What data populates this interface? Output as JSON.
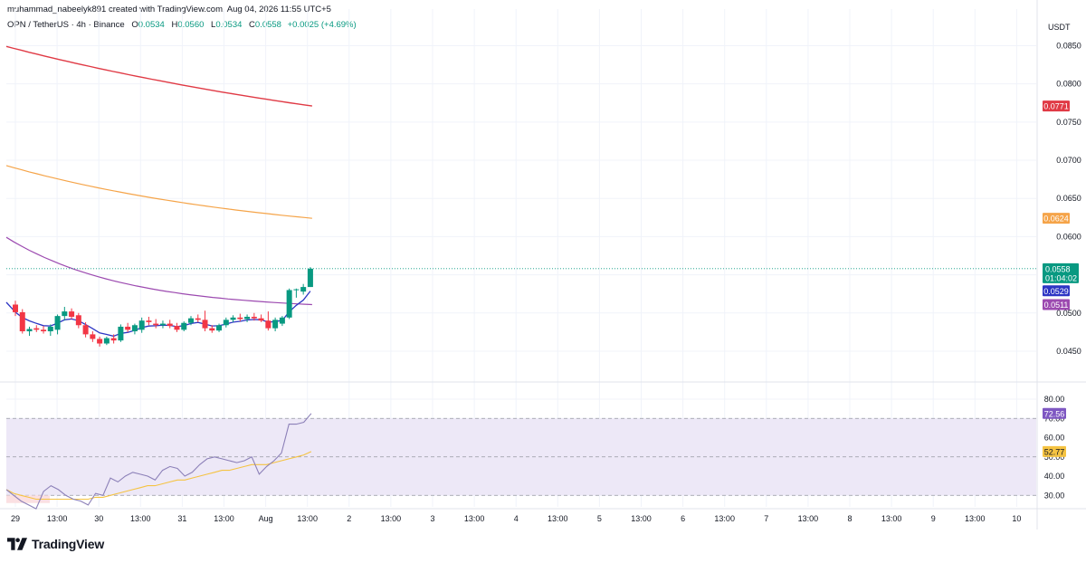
{
  "header": {
    "credit": "muhammad_nabeelyk891 created with TradingView.com, Aug 04, 2026 11:55 UTC+5",
    "symbol": "OPN / TetherUS · 4h · Binance",
    "open_label": "O",
    "open": "0.0534",
    "high_label": "H",
    "high": "0.0560",
    "low_label": "L",
    "low": "0.0534",
    "close_label": "C",
    "close": "0.0558",
    "change": "+0.0025 (+4.69%)"
  },
  "currency_label": "USDT",
  "brand": {
    "name": "TradingView",
    "logo_icon": "tradingview-logo-icon"
  },
  "colors": {
    "up": "#089981",
    "down": "#f23645",
    "ma_red": "#e03a45",
    "ma_orange": "#f5a449",
    "ma_purple": "#9c4ab0",
    "ma_blue": "#2d35c4",
    "rsi": "#8c80b8",
    "rsi_ma": "#f5c342",
    "rsi_band": "#ede8f7",
    "grid": "#f0f3fa"
  },
  "chart_data": [
    {
      "type": "candlestick",
      "title": "OPN / TetherUS · 4h · Binance",
      "ylabel": "USDT",
      "ylim": [
        0.0412,
        0.0898
      ],
      "y_ticks": [
        "0.0850",
        "0.0800",
        "0.0750",
        "0.0700",
        "0.0650",
        "0.0600",
        "0.0500",
        "0.0450"
      ],
      "x_ticks": [
        "29",
        "13:00",
        "30",
        "13:00",
        "31",
        "13:00",
        "Aug",
        "13:00",
        "2",
        "13:00",
        "3",
        "13:00",
        "4",
        "13:00",
        "5",
        "13:00",
        "6",
        "13:00",
        "7",
        "13:00",
        "8",
        "13:00",
        "9",
        "13:00",
        "10"
      ],
      "candles": [
        {
          "o": 0.0511,
          "h": 0.0516,
          "l": 0.0496,
          "c": 0.0501
        },
        {
          "o": 0.0501,
          "h": 0.0505,
          "l": 0.0473,
          "c": 0.0476
        },
        {
          "o": 0.0476,
          "h": 0.0482,
          "l": 0.047,
          "c": 0.0479
        },
        {
          "o": 0.048,
          "h": 0.0484,
          "l": 0.0475,
          "c": 0.0478
        },
        {
          "o": 0.0478,
          "h": 0.0483,
          "l": 0.0473,
          "c": 0.0476
        },
        {
          "o": 0.0476,
          "h": 0.0485,
          "l": 0.047,
          "c": 0.0482
        },
        {
          "o": 0.0478,
          "h": 0.0498,
          "l": 0.0472,
          "c": 0.0496
        },
        {
          "o": 0.0496,
          "h": 0.0508,
          "l": 0.049,
          "c": 0.0502
        },
        {
          "o": 0.0502,
          "h": 0.0506,
          "l": 0.0492,
          "c": 0.0495
        },
        {
          "o": 0.0497,
          "h": 0.05,
          "l": 0.048,
          "c": 0.0484
        },
        {
          "o": 0.0484,
          "h": 0.0488,
          "l": 0.0468,
          "c": 0.0472
        },
        {
          "o": 0.0472,
          "h": 0.0476,
          "l": 0.0462,
          "c": 0.0466
        },
        {
          "o": 0.0466,
          "h": 0.0469,
          "l": 0.0456,
          "c": 0.046
        },
        {
          "o": 0.046,
          "h": 0.0469,
          "l": 0.0458,
          "c": 0.0467
        },
        {
          "o": 0.0467,
          "h": 0.0472,
          "l": 0.046,
          "c": 0.0464
        },
        {
          "o": 0.0464,
          "h": 0.0485,
          "l": 0.0462,
          "c": 0.0482
        },
        {
          "o": 0.0482,
          "h": 0.0487,
          "l": 0.0475,
          "c": 0.0478
        },
        {
          "o": 0.0476,
          "h": 0.0486,
          "l": 0.0472,
          "c": 0.0484
        },
        {
          "o": 0.0478,
          "h": 0.0494,
          "l": 0.0474,
          "c": 0.049
        },
        {
          "o": 0.049,
          "h": 0.0495,
          "l": 0.0484,
          "c": 0.0488
        },
        {
          "o": 0.0486,
          "h": 0.0492,
          "l": 0.048,
          "c": 0.0484
        },
        {
          "o": 0.0484,
          "h": 0.049,
          "l": 0.048,
          "c": 0.0486
        },
        {
          "o": 0.0486,
          "h": 0.0491,
          "l": 0.048,
          "c": 0.0483
        },
        {
          "o": 0.0483,
          "h": 0.0487,
          "l": 0.0475,
          "c": 0.0478
        },
        {
          "o": 0.0478,
          "h": 0.0489,
          "l": 0.0476,
          "c": 0.0487
        },
        {
          "o": 0.0487,
          "h": 0.0496,
          "l": 0.0484,
          "c": 0.0493
        },
        {
          "o": 0.0493,
          "h": 0.0498,
          "l": 0.0488,
          "c": 0.0491
        },
        {
          "o": 0.0491,
          "h": 0.0503,
          "l": 0.0476,
          "c": 0.048
        },
        {
          "o": 0.048,
          "h": 0.0484,
          "l": 0.0474,
          "c": 0.0477
        },
        {
          "o": 0.0477,
          "h": 0.0486,
          "l": 0.0475,
          "c": 0.0484
        },
        {
          "o": 0.0484,
          "h": 0.0494,
          "l": 0.0481,
          "c": 0.0491
        },
        {
          "o": 0.0491,
          "h": 0.0497,
          "l": 0.0488,
          "c": 0.0494
        },
        {
          "o": 0.0494,
          "h": 0.0499,
          "l": 0.0489,
          "c": 0.0492
        },
        {
          "o": 0.0492,
          "h": 0.0498,
          "l": 0.0488,
          "c": 0.0495
        },
        {
          "o": 0.0495,
          "h": 0.05,
          "l": 0.049,
          "c": 0.0493
        },
        {
          "o": 0.0493,
          "h": 0.0498,
          "l": 0.0488,
          "c": 0.049
        },
        {
          "o": 0.049,
          "h": 0.0502,
          "l": 0.0477,
          "c": 0.048
        },
        {
          "o": 0.048,
          "h": 0.0494,
          "l": 0.0476,
          "c": 0.0491
        },
        {
          "o": 0.0486,
          "h": 0.0496,
          "l": 0.0483,
          "c": 0.0494
        },
        {
          "o": 0.0494,
          "h": 0.0532,
          "l": 0.0492,
          "c": 0.053
        },
        {
          "o": 0.053,
          "h": 0.0532,
          "l": 0.052,
          "c": 0.0531
        },
        {
          "o": 0.0528,
          "h": 0.0538,
          "l": 0.0524,
          "c": 0.0534
        },
        {
          "o": 0.0534,
          "h": 0.056,
          "l": 0.0534,
          "c": 0.0558
        }
      ],
      "moving_averages": [
        {
          "color": "#e03a45",
          "last": "0.0771",
          "start": 0.0849,
          "end": 0.0771
        },
        {
          "color": "#f5a449",
          "last": "0.0624",
          "start": 0.0693,
          "end": 0.0624
        },
        {
          "color": "#9c4ab0",
          "last": "0.0511",
          "start": 0.0599,
          "end": 0.0511
        },
        {
          "color": "#2d35c4",
          "last": "0.0529"
        }
      ],
      "last_price": {
        "value": "0.0558",
        "countdown": "01:04:02"
      }
    },
    {
      "type": "line",
      "title": "",
      "ylim": [
        24,
        88
      ],
      "y_ticks": [
        "80.00",
        "70.00",
        "60.00",
        "50.00",
        "40.00",
        "30.00"
      ],
      "band": [
        30,
        70
      ],
      "rsi": [
        33,
        30,
        27,
        25,
        23,
        32,
        35,
        33,
        30,
        28,
        27,
        25,
        31,
        30,
        39,
        37,
        40,
        42,
        41,
        40,
        38,
        43,
        45,
        44,
        40,
        42,
        46,
        49,
        50,
        49,
        48,
        47,
        48,
        50,
        41,
        45,
        48,
        52,
        67,
        67,
        68,
        72.56
      ],
      "rsi_ma": [
        33,
        31,
        30,
        29,
        28,
        28,
        28,
        28,
        28,
        28,
        28,
        28,
        29,
        29,
        30,
        31,
        32,
        33,
        34,
        35,
        35,
        36,
        37,
        38,
        38,
        39,
        40,
        41,
        42,
        43,
        43,
        44,
        45,
        46,
        46,
        46,
        47,
        48,
        49,
        50,
        51,
        52.77
      ],
      "rsi_last": "72.56",
      "rsi_ma_last": "52.77"
    }
  ]
}
